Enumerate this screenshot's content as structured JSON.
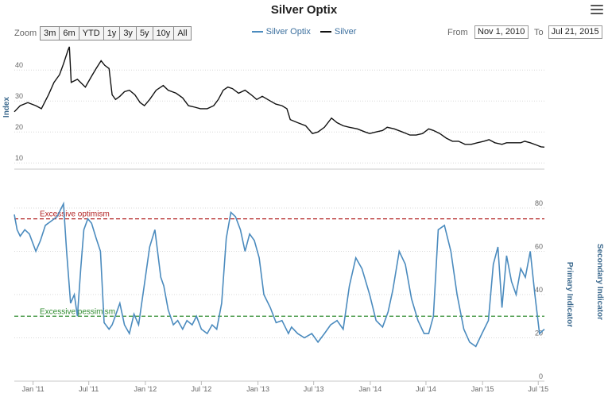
{
  "page": {
    "title": "Silver Optix",
    "menu_icon": "hamburger-icon"
  },
  "zoom": {
    "label": "Zoom",
    "buttons": [
      "3m",
      "6m",
      "YTD",
      "1y",
      "3y",
      "5y",
      "10y",
      "All"
    ]
  },
  "range": {
    "from_label": "From",
    "from_value": "Nov 1, 2010",
    "to_label": "To",
    "to_value": "Jul 21, 2015"
  },
  "colors": {
    "optix": "#4b8bbe",
    "silver": "#111111",
    "optimism": "#b22222",
    "pessimism": "#2e8b2e"
  },
  "chart_data": [
    {
      "type": "line",
      "ylabel": "Index",
      "yticks": [
        10,
        20,
        30,
        40
      ],
      "ylim": [
        8,
        48
      ],
      "xlim": [
        "2010-11-01",
        "2015-07-21"
      ],
      "xticks": [
        "Jan '11",
        "Jul '11",
        "Jan '12",
        "Jul '12",
        "Jan '13",
        "Jul '13",
        "Jan '14",
        "Jul '14",
        "Jan '15",
        "Jul '15"
      ],
      "xtick_dates": [
        "2011-01-01",
        "2011-07-01",
        "2012-01-01",
        "2012-07-01",
        "2013-01-01",
        "2013-07-01",
        "2014-01-01",
        "2014-07-01",
        "2015-01-01",
        "2015-07-01"
      ],
      "grid": true,
      "series": [
        {
          "name": "Silver",
          "x": [
            "2010-11-01",
            "2010-11-20",
            "2010-12-15",
            "2011-01-10",
            "2011-01-28",
            "2011-02-20",
            "2011-03-10",
            "2011-03-28",
            "2011-04-10",
            "2011-04-25",
            "2011-04-29",
            "2011-05-05",
            "2011-05-25",
            "2011-06-20",
            "2011-07-10",
            "2011-07-25",
            "2011-08-10",
            "2011-08-22",
            "2011-09-05",
            "2011-09-15",
            "2011-09-26",
            "2011-10-10",
            "2011-10-25",
            "2011-11-10",
            "2011-11-28",
            "2011-12-15",
            "2011-12-29",
            "2012-01-15",
            "2012-02-05",
            "2012-02-28",
            "2012-03-15",
            "2012-04-10",
            "2012-05-01",
            "2012-05-20",
            "2012-06-10",
            "2012-06-28",
            "2012-07-20",
            "2012-08-10",
            "2012-08-25",
            "2012-09-10",
            "2012-09-25",
            "2012-10-10",
            "2012-10-30",
            "2012-11-20",
            "2012-12-10",
            "2012-12-28",
            "2013-01-15",
            "2013-02-10",
            "2013-02-28",
            "2013-03-20",
            "2013-04-05",
            "2013-04-16",
            "2013-05-10",
            "2013-06-05",
            "2013-06-27",
            "2013-07-15",
            "2013-08-05",
            "2013-08-28",
            "2013-09-15",
            "2013-10-05",
            "2013-10-25",
            "2013-11-20",
            "2013-12-15",
            "2013-12-30",
            "2014-01-20",
            "2014-02-10",
            "2014-02-25",
            "2014-03-20",
            "2014-04-15",
            "2014-05-10",
            "2014-05-30",
            "2014-06-20",
            "2014-07-10",
            "2014-07-25",
            "2014-08-15",
            "2014-09-05",
            "2014-09-25",
            "2014-10-15",
            "2014-11-05",
            "2014-11-25",
            "2014-12-15",
            "2015-01-05",
            "2015-01-22",
            "2015-02-10",
            "2015-03-05",
            "2015-03-20",
            "2015-04-10",
            "2015-05-05",
            "2015-05-18",
            "2015-06-05",
            "2015-06-25",
            "2015-07-10",
            "2015-07-21"
          ],
          "values": [
            26.5,
            28.5,
            29.5,
            28.5,
            27.5,
            32.0,
            36.0,
            38.5,
            42.0,
            46.5,
            47.5,
            36.0,
            37.0,
            34.5,
            38.0,
            40.5,
            43.0,
            41.5,
            40.5,
            32.0,
            30.5,
            31.5,
            33.0,
            33.5,
            32.0,
            29.5,
            28.5,
            30.5,
            33.5,
            35.0,
            33.5,
            32.5,
            31.0,
            28.5,
            28.0,
            27.5,
            27.5,
            28.5,
            30.5,
            33.5,
            34.5,
            34.0,
            32.5,
            33.5,
            32.0,
            30.5,
            31.5,
            30.0,
            29.0,
            28.5,
            27.5,
            24.0,
            23.0,
            22.0,
            19.5,
            20.0,
            21.5,
            24.5,
            23.0,
            22.0,
            21.5,
            21.0,
            20.0,
            19.5,
            20.0,
            20.5,
            21.5,
            21.0,
            20.0,
            19.0,
            19.0,
            19.5,
            21.0,
            20.5,
            19.5,
            18.0,
            17.0,
            17.0,
            16.0,
            16.0,
            16.5,
            17.0,
            17.5,
            16.5,
            16.0,
            16.5,
            16.5,
            16.5,
            17.0,
            16.5,
            15.8,
            15.2,
            15.1
          ]
        }
      ]
    },
    {
      "type": "line",
      "ylabel": "Primary Indicator",
      "ylabel_secondary": "Secondary Indicator",
      "yticks": [
        0,
        20,
        40,
        60,
        80
      ],
      "ylim": [
        0,
        80
      ],
      "grid": true,
      "annotations": [
        {
          "label": "Excessive optimism",
          "y": 75
        },
        {
          "label": "Excessive pessimism",
          "y": 30
        }
      ],
      "series": [
        {
          "name": "Silver Optix",
          "x": [
            "2010-11-01",
            "2010-11-10",
            "2010-11-20",
            "2010-12-05",
            "2010-12-20",
            "2011-01-10",
            "2011-01-25",
            "2011-02-10",
            "2011-03-01",
            "2011-03-20",
            "2011-04-10",
            "2011-04-20",
            "2011-05-03",
            "2011-05-15",
            "2011-05-25",
            "2011-06-05",
            "2011-06-15",
            "2011-06-28",
            "2011-07-10",
            "2011-07-25",
            "2011-08-08",
            "2011-08-20",
            "2011-09-05",
            "2011-09-15",
            "2011-09-25",
            "2011-10-10",
            "2011-10-25",
            "2011-11-10",
            "2011-11-25",
            "2011-12-10",
            "2011-12-28",
            "2012-01-15",
            "2012-02-01",
            "2012-02-20",
            "2012-03-01",
            "2012-03-15",
            "2012-04-01",
            "2012-04-15",
            "2012-05-01",
            "2012-05-15",
            "2012-06-01",
            "2012-06-15",
            "2012-07-01",
            "2012-07-20",
            "2012-08-05",
            "2012-08-20",
            "2012-09-05",
            "2012-09-20",
            "2012-10-05",
            "2012-10-20",
            "2012-11-05",
            "2012-11-20",
            "2012-12-05",
            "2012-12-20",
            "2013-01-05",
            "2013-01-20",
            "2013-02-10",
            "2013-03-01",
            "2013-03-20",
            "2013-04-10",
            "2013-04-20",
            "2013-05-10",
            "2013-06-01",
            "2013-06-25",
            "2013-07-15",
            "2013-08-05",
            "2013-08-25",
            "2013-09-15",
            "2013-10-05",
            "2013-10-25",
            "2013-11-15",
            "2013-12-05",
            "2013-12-30",
            "2014-01-20",
            "2014-02-10",
            "2014-02-28",
            "2014-03-15",
            "2014-04-05",
            "2014-04-25",
            "2014-05-15",
            "2014-06-05",
            "2014-06-25",
            "2014-07-10",
            "2014-07-25",
            "2014-08-10",
            "2014-08-30",
            "2014-09-20",
            "2014-10-10",
            "2014-11-01",
            "2014-11-20",
            "2014-12-10",
            "2014-12-30",
            "2015-01-20",
            "2015-02-05",
            "2015-02-20",
            "2015-03-05",
            "2015-03-20",
            "2015-04-05",
            "2015-04-20",
            "2015-05-05",
            "2015-05-20",
            "2015-06-05",
            "2015-06-20",
            "2015-07-05",
            "2015-07-21"
          ],
          "values": [
            77,
            70,
            67,
            70,
            68,
            60,
            65,
            72,
            74,
            76,
            82,
            60,
            36,
            40,
            30,
            52,
            70,
            75,
            73,
            66,
            60,
            27,
            24,
            26,
            30,
            36,
            26,
            22,
            31,
            26,
            44,
            62,
            70,
            48,
            44,
            33,
            26,
            28,
            24,
            28,
            26,
            30,
            24,
            22,
            26,
            24,
            36,
            66,
            78,
            76,
            70,
            60,
            68,
            65,
            57,
            40,
            34,
            27,
            28,
            22,
            25,
            22,
            20,
            22,
            18,
            22,
            26,
            28,
            24,
            44,
            57,
            52,
            40,
            28,
            25,
            32,
            42,
            60,
            54,
            38,
            28,
            22,
            22,
            30,
            70,
            72,
            60,
            40,
            24,
            18,
            16,
            22,
            28,
            54,
            62,
            34,
            58,
            46,
            40,
            52,
            48,
            60,
            40,
            22,
            24
          ]
        }
      ]
    }
  ]
}
